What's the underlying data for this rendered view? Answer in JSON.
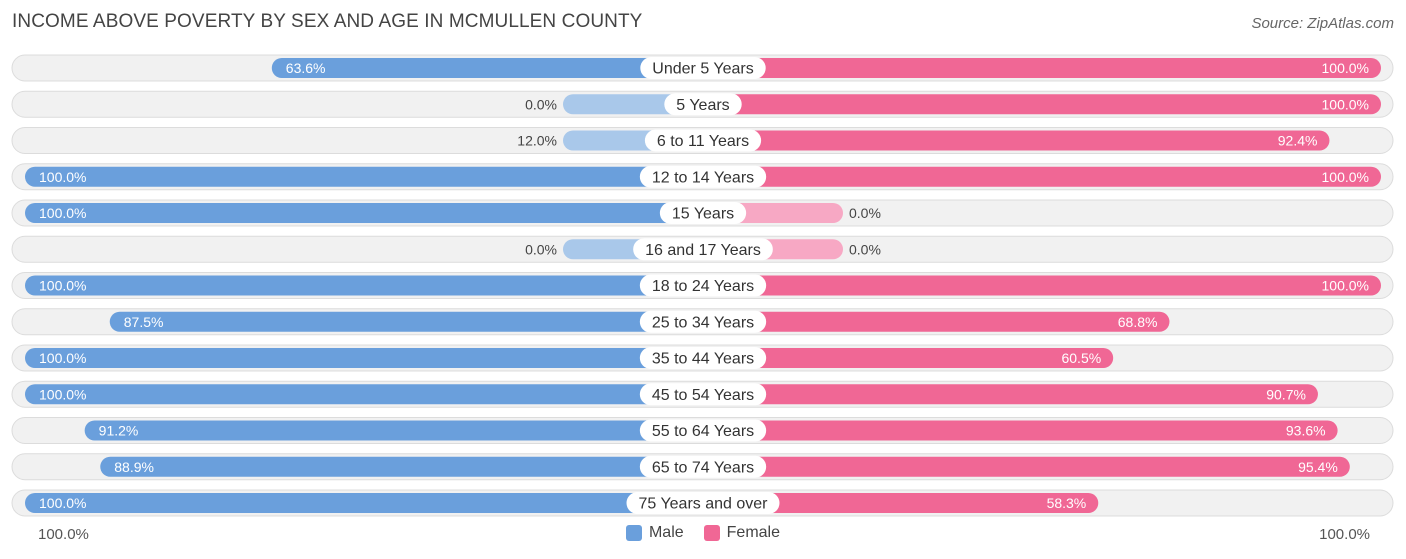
{
  "title": "INCOME ABOVE POVERTY BY SEX AND AGE IN MCMULLEN COUNTY",
  "source": "Source: ZipAtlas.com",
  "colors": {
    "male_strong": "#6a9fdc",
    "male_light": "#a9c8ea",
    "female_strong": "#f06795",
    "female_light": "#f7a8c4",
    "track": "#f1f1f1",
    "track_border": "#dcdcdc"
  },
  "axis": {
    "left_label": "100.0%",
    "right_label": "100.0%"
  },
  "legend": {
    "male": "Male",
    "female": "Female"
  },
  "chart_data": {
    "type": "bar",
    "orientation": "horizontal-diverging",
    "title": "INCOME ABOVE POVERTY BY SEX AND AGE IN MCMULLEN COUNTY",
    "xlim": [
      -100,
      100
    ],
    "categories": [
      "Under 5 Years",
      "5 Years",
      "6 to 11 Years",
      "12 to 14 Years",
      "15 Years",
      "16 and 17 Years",
      "18 to 24 Years",
      "25 to 34 Years",
      "35 to 44 Years",
      "45 to 54 Years",
      "55 to 64 Years",
      "65 to 74 Years",
      "75 Years and over"
    ],
    "series": [
      {
        "name": "Male",
        "values": [
          63.6,
          0.0,
          12.0,
          100.0,
          100.0,
          0.0,
          100.0,
          87.5,
          100.0,
          100.0,
          91.2,
          88.9,
          100.0
        ],
        "labels": [
          "63.6%",
          "0.0%",
          "12.0%",
          "100.0%",
          "100.0%",
          "0.0%",
          "100.0%",
          "87.5%",
          "100.0%",
          "100.0%",
          "91.2%",
          "88.9%",
          "100.0%"
        ]
      },
      {
        "name": "Female",
        "values": [
          100.0,
          100.0,
          92.4,
          100.0,
          0.0,
          0.0,
          100.0,
          68.8,
          60.5,
          90.7,
          93.6,
          95.4,
          58.3
        ],
        "labels": [
          "100.0%",
          "100.0%",
          "92.4%",
          "100.0%",
          "0.0%",
          "0.0%",
          "100.0%",
          "68.8%",
          "60.5%",
          "90.7%",
          "93.6%",
          "95.4%",
          "58.3%"
        ]
      }
    ]
  }
}
